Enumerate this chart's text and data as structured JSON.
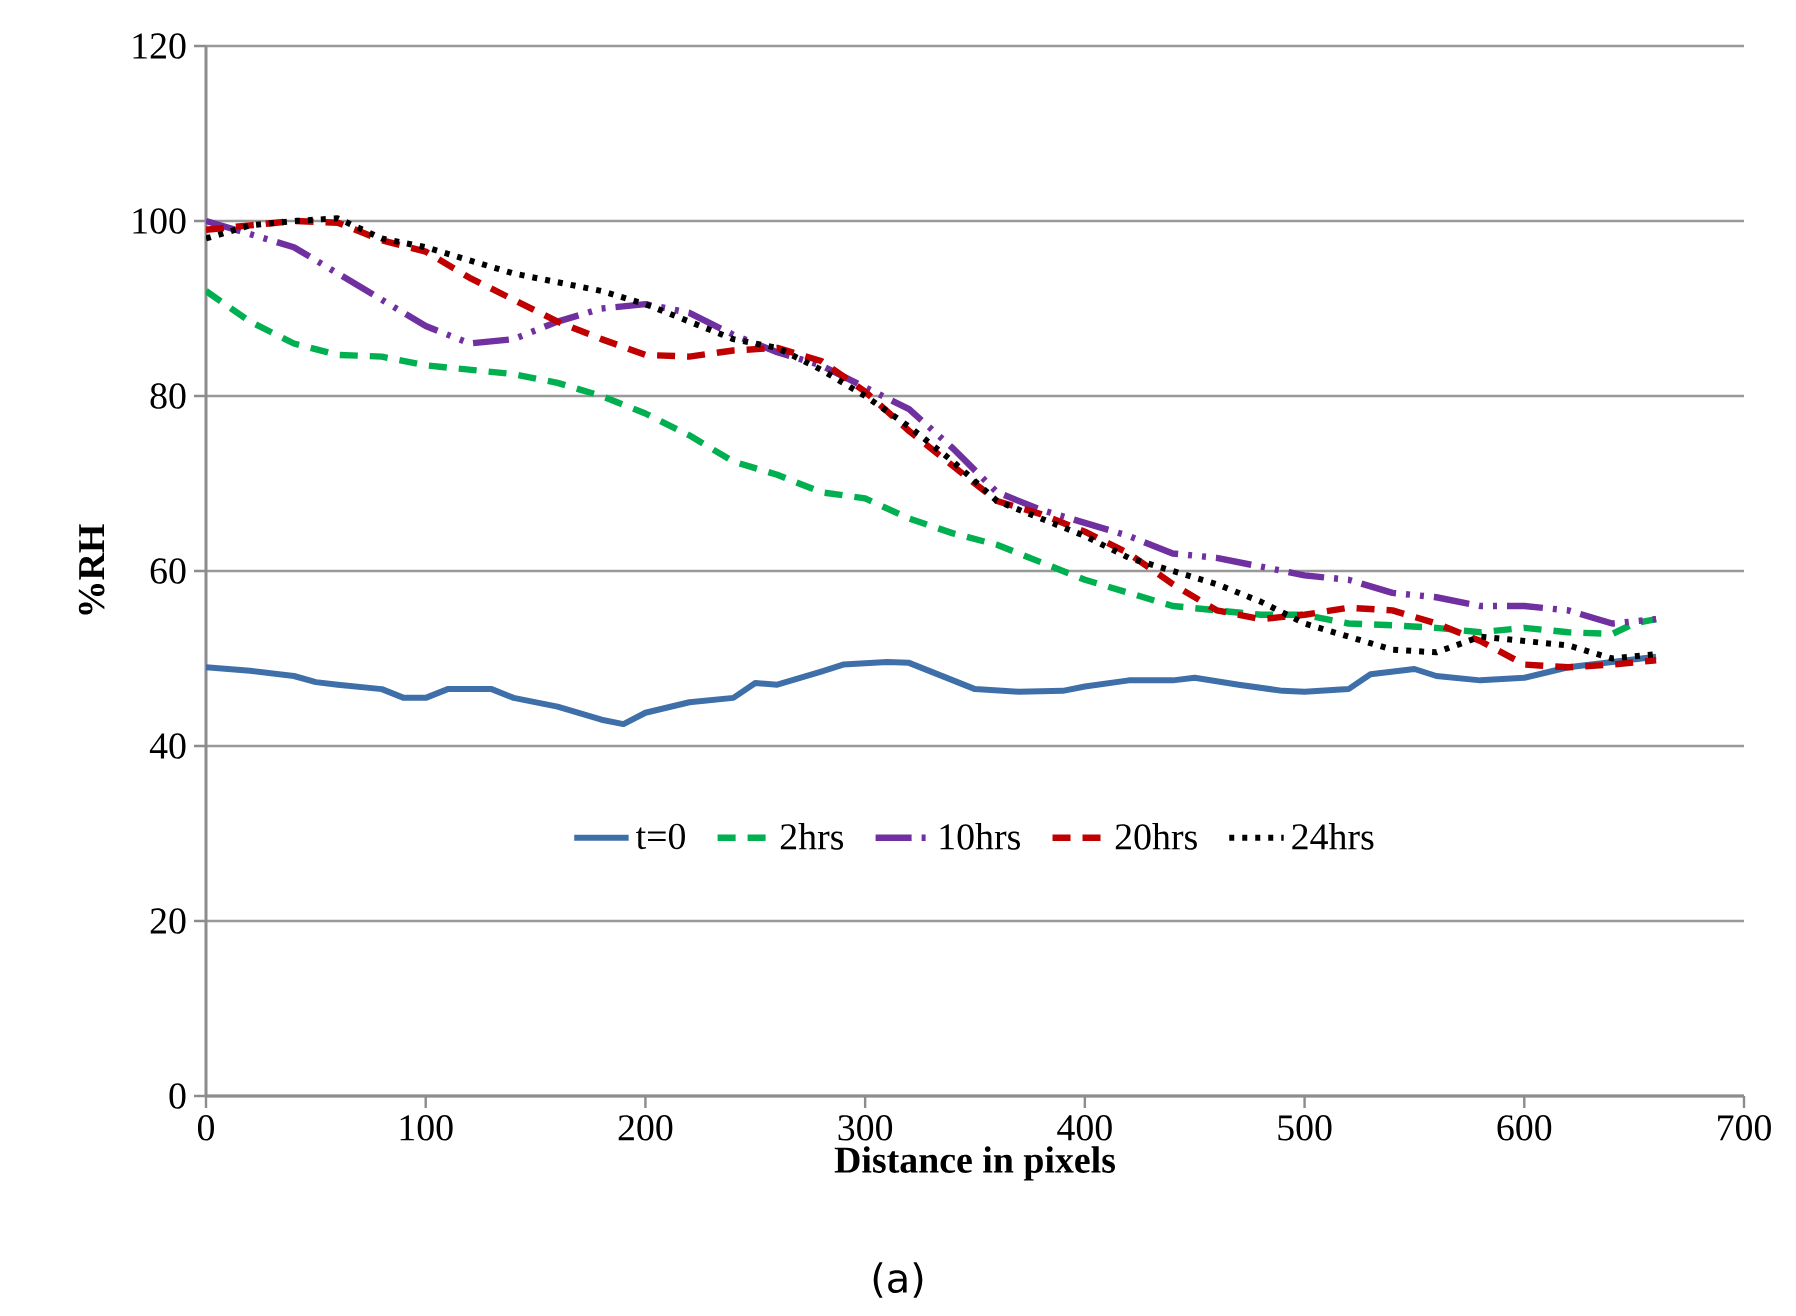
{
  "chart_data": {
    "type": "line",
    "xlabel": "Distance in pixels",
    "ylabel": "%RH",
    "annotations": [
      "(a)"
    ],
    "xlim": [
      0,
      700
    ],
    "ylim": [
      0,
      120
    ],
    "xticks": [
      0,
      100,
      200,
      300,
      400,
      500,
      600,
      700
    ],
    "yticks": [
      0,
      20,
      40,
      60,
      80,
      100,
      120
    ],
    "grid": "y",
    "legend": "bottom",
    "series": [
      {
        "name": "t=0",
        "color": "#3f6fa8",
        "line_style": "solid",
        "x": [
          0,
          20,
          40,
          50,
          60,
          80,
          90,
          100,
          110,
          130,
          140,
          160,
          180,
          190,
          200,
          220,
          240,
          250,
          260,
          280,
          290,
          310,
          320,
          330,
          350,
          370,
          390,
          400,
          420,
          440,
          450,
          470,
          490,
          500,
          520,
          530,
          550,
          560,
          580,
          600,
          620,
          640,
          660
        ],
        "values": [
          49,
          48.6,
          48,
          47.3,
          47,
          46.5,
          45.5,
          45.5,
          46.5,
          46.5,
          45.5,
          44.5,
          43,
          42.5,
          43.8,
          45,
          45.5,
          47.2,
          47,
          48.5,
          49.3,
          49.6,
          49.5,
          48.5,
          46.5,
          46.2,
          46.3,
          46.8,
          47.5,
          47.5,
          47.8,
          47,
          46.3,
          46.2,
          46.5,
          48.2,
          48.8,
          48,
          47.5,
          47.8,
          49,
          49.6,
          50.2
        ]
      },
      {
        "name": "2hrs",
        "color": "#00b050",
        "line_style": "dashed",
        "x": [
          0,
          20,
          40,
          60,
          80,
          100,
          120,
          140,
          160,
          180,
          200,
          220,
          240,
          260,
          280,
          300,
          320,
          340,
          360,
          380,
          400,
          420,
          440,
          460,
          480,
          500,
          520,
          540,
          560,
          580,
          600,
          620,
          640,
          650,
          660
        ],
        "values": [
          92,
          88.5,
          86,
          84.7,
          84.5,
          83.5,
          83,
          82.5,
          81.5,
          80,
          78,
          75.5,
          72.5,
          71,
          69,
          68.3,
          66,
          64.3,
          63,
          61,
          59,
          57.5,
          56,
          55.5,
          55,
          55,
          54,
          53.8,
          53.5,
          53,
          53.5,
          53,
          52.8,
          54,
          54.5
        ]
      },
      {
        "name": "10hrs",
        "color": "#7030a0",
        "line_style": "dashdot",
        "x": [
          0,
          20,
          40,
          60,
          80,
          100,
          120,
          140,
          160,
          180,
          200,
          220,
          240,
          260,
          280,
          300,
          320,
          340,
          360,
          380,
          400,
          420,
          440,
          460,
          480,
          500,
          520,
          540,
          560,
          580,
          600,
          620,
          640,
          660
        ],
        "values": [
          100,
          98.5,
          97,
          94,
          91,
          88,
          86,
          86.5,
          88.5,
          90,
          90.5,
          89.5,
          87,
          85,
          83.5,
          81,
          78.5,
          74,
          69,
          67,
          65.5,
          64,
          62,
          61.5,
          60.5,
          59.5,
          59,
          57.5,
          57,
          56,
          56,
          55.5,
          54,
          54.5
        ]
      },
      {
        "name": "20hrs",
        "color": "#c00000",
        "line_style": "dashed",
        "x": [
          0,
          20,
          40,
          60,
          80,
          100,
          120,
          140,
          160,
          180,
          200,
          220,
          240,
          260,
          280,
          300,
          320,
          340,
          360,
          380,
          400,
          420,
          440,
          460,
          480,
          500,
          520,
          540,
          560,
          580,
          600,
          620,
          640,
          660
        ],
        "values": [
          99,
          99.5,
          100,
          99.8,
          97.8,
          96.5,
          93.5,
          91,
          88.5,
          86.5,
          84.7,
          84.5,
          85.2,
          85.5,
          84,
          80.5,
          76,
          72,
          68,
          66.5,
          64.5,
          62,
          58.5,
          55.5,
          54.5,
          55,
          55.8,
          55.5,
          54,
          52,
          49.3,
          49,
          49.3,
          49.8
        ]
      },
      {
        "name": "24hrs",
        "color": "#000000",
        "line_style": "dotted",
        "x": [
          0,
          20,
          40,
          60,
          80,
          100,
          120,
          140,
          160,
          180,
          200,
          220,
          240,
          260,
          280,
          300,
          320,
          340,
          360,
          380,
          400,
          420,
          440,
          460,
          480,
          500,
          520,
          540,
          560,
          580,
          600,
          620,
          640,
          660
        ],
        "values": [
          98,
          99.5,
          100,
          100.3,
          98,
          97,
          95.5,
          94,
          93,
          92,
          90.5,
          88.5,
          86.5,
          85.5,
          83,
          80,
          76.5,
          72.5,
          68,
          66,
          64,
          61.5,
          60,
          58.5,
          56.5,
          54,
          52.5,
          51,
          50.7,
          52.5,
          52,
          51.5,
          50,
          50.5
        ]
      }
    ]
  }
}
